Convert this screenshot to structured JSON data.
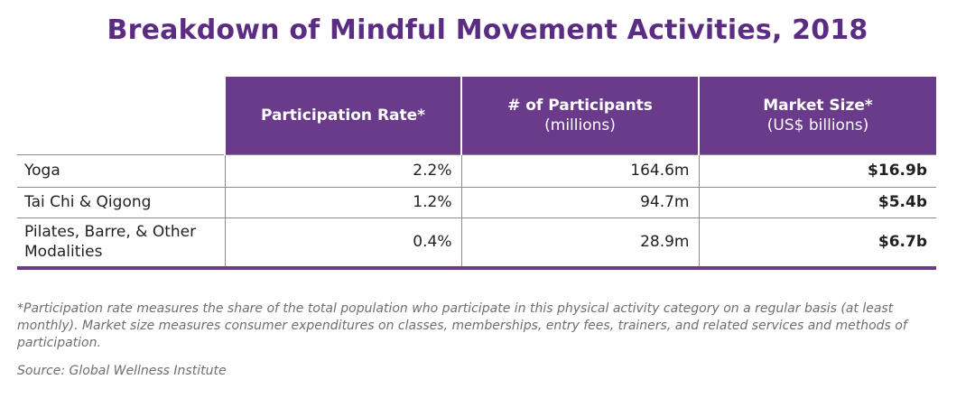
{
  "title": "Breakdown of Mindful Movement Activities, 2018",
  "table": {
    "headers": [
      {
        "main": "Participation Rate*",
        "sub": ""
      },
      {
        "main": "# of Participants",
        "sub": "(millions)"
      },
      {
        "main": "Market Size*",
        "sub": "(US$ billions)"
      }
    ],
    "rows": [
      {
        "label": "Yoga",
        "rate": "2.2%",
        "participants": "164.6m",
        "market": "$16.9b"
      },
      {
        "label": "Tai Chi & Qigong",
        "rate": "1.2%",
        "participants": "94.7m",
        "market": "$5.4b"
      },
      {
        "label": "Pilates, Barre, & Other Modalities",
        "rate": "0.4%",
        "participants": "28.9m",
        "market": "$6.7b"
      }
    ]
  },
  "footnote": "*Participation rate measures the share of the total population who participate in this physical activity category on a regular basis (at least monthly). Market size measures consumer expenditures on classes, memberships, entry fees, trainers, and related services and methods of participation.",
  "source": "Source: Global Wellness Institute",
  "colors": {
    "accent": "#693b8a",
    "title": "#5b2d82",
    "footnote": "#6d6e71"
  }
}
